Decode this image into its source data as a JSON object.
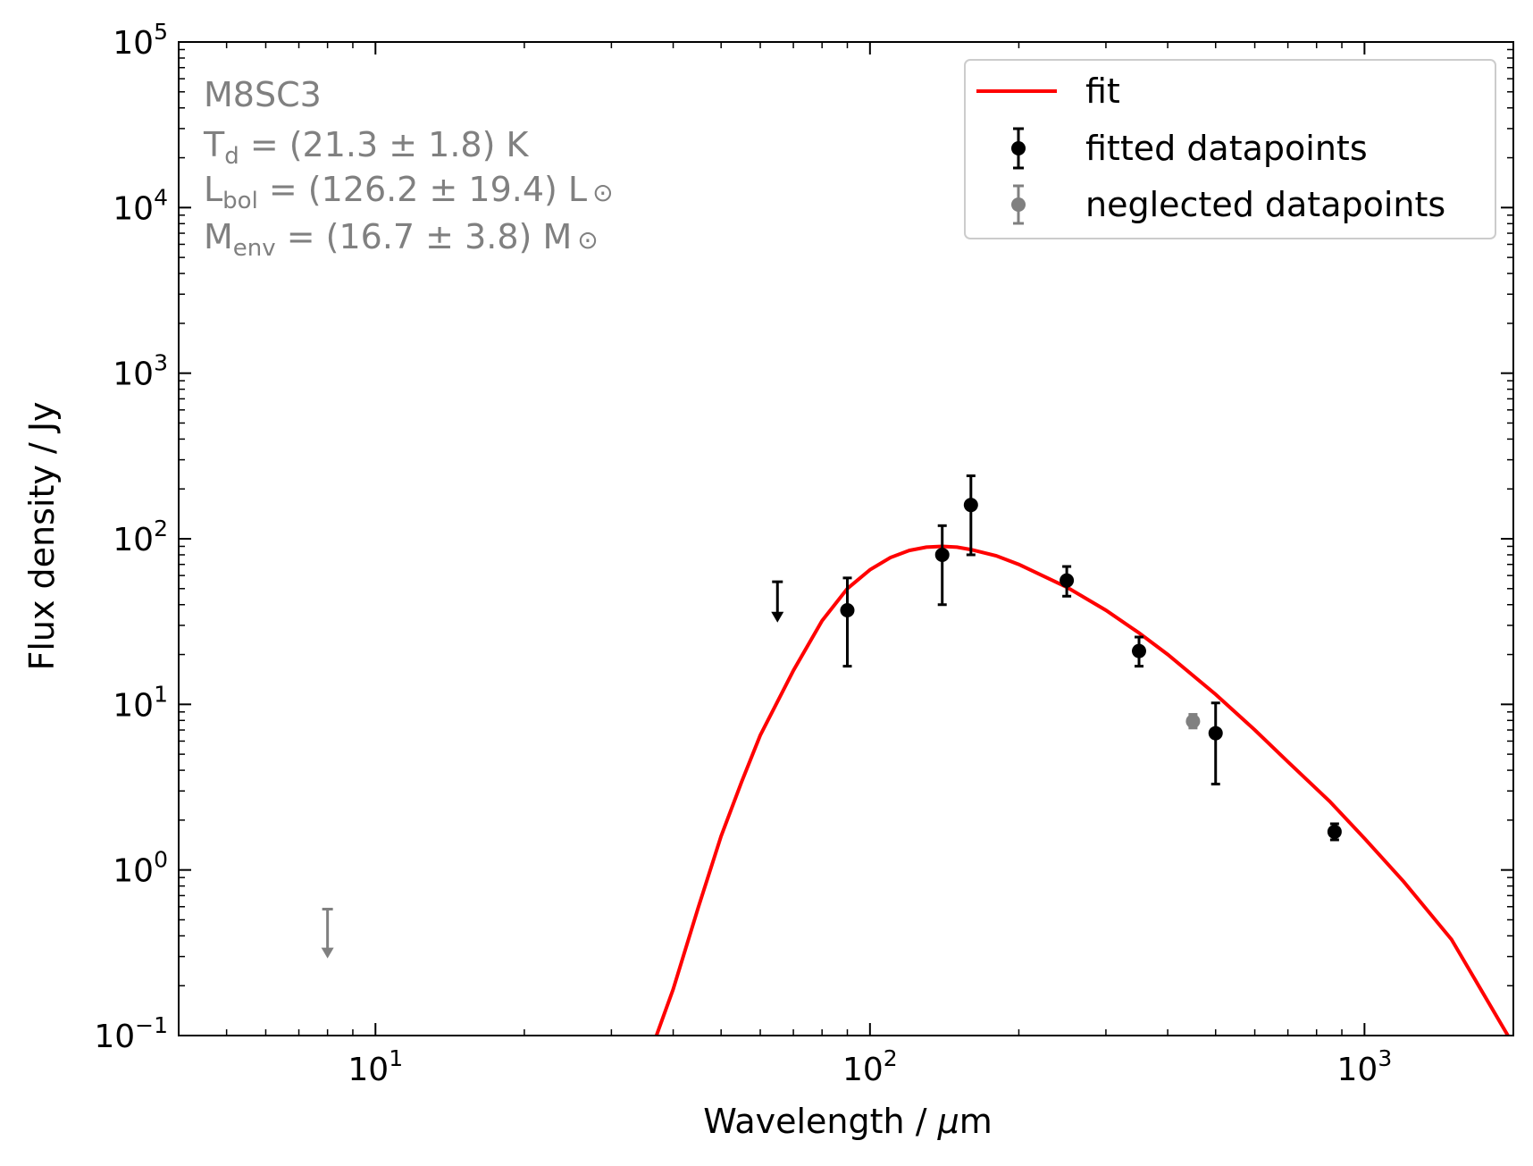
{
  "chart_data": {
    "type": "scatter",
    "object_name": "M8SC3",
    "annotations": {
      "name": "M8SC3",
      "td_main": "T",
      "td_sub": "d",
      "td_rest": " = (21.3 ± 1.8) K",
      "lbol_main": "L",
      "lbol_sub": "bol",
      "lbol_rest": " = (126.2 ± 19.4) L",
      "menv_main": "M",
      "menv_sub": "env",
      "menv_rest": " = (16.7 ± 3.8) M",
      "sun_symbol": "⊙"
    },
    "xlabel_prefix": "Wavelength / ",
    "xlabel_mu": "μ",
    "xlabel_suffix": "m",
    "ylabel": "Flux density / Jy",
    "x_scale": "log",
    "y_scale": "log",
    "xlim": [
      4,
      2000
    ],
    "ylim": [
      0.1,
      100000
    ],
    "x_ticks": [
      {
        "value": 10,
        "base": "10",
        "exp": "1"
      },
      {
        "value": 100,
        "base": "10",
        "exp": "2"
      },
      {
        "value": 1000,
        "base": "10",
        "exp": "3"
      }
    ],
    "y_ticks": [
      {
        "value": 0.1,
        "base": "10",
        "exp": "−1"
      },
      {
        "value": 1,
        "base": "10",
        "exp": "0"
      },
      {
        "value": 10,
        "base": "10",
        "exp": "1"
      },
      {
        "value": 100,
        "base": "10",
        "exp": "2"
      },
      {
        "value": 1000,
        "base": "10",
        "exp": "3"
      },
      {
        "value": 10000,
        "base": "10",
        "exp": "4"
      },
      {
        "value": 100000,
        "base": "10",
        "exp": "5"
      }
    ],
    "grid": false,
    "legend_position": "top-right",
    "legend": [
      {
        "label": "fit",
        "kind": "line",
        "color": "#ff0000"
      },
      {
        "label": "fitted datapoints",
        "kind": "errorbar",
        "color": "#000000"
      },
      {
        "label": "neglected datapoints",
        "kind": "errorbar",
        "color": "#808080"
      }
    ],
    "series": [
      {
        "name": "fit",
        "kind": "line",
        "color": "#ff0000",
        "x": [
          37,
          40,
          45,
          50,
          55,
          60,
          70,
          80,
          90,
          100,
          110,
          120,
          130,
          140,
          150,
          160,
          180,
          200,
          250,
          300,
          350,
          400,
          500,
          600,
          700,
          850,
          1000,
          1200,
          1500,
          1950
        ],
        "y": [
          0.1,
          0.19,
          0.6,
          1.6,
          3.4,
          6.5,
          16,
          32,
          50,
          65,
          77,
          85,
          89,
          90,
          89,
          86,
          79,
          70,
          51,
          37,
          27,
          20,
          11.5,
          7.0,
          4.5,
          2.6,
          1.55,
          0.85,
          0.38,
          0.1
        ]
      },
      {
        "name": "fitted datapoints",
        "kind": "errorbar",
        "color": "#000000",
        "points": [
          {
            "x": 90,
            "y": 37,
            "yerr_low": 17,
            "yerr_high": 58
          },
          {
            "x": 140,
            "y": 80,
            "yerr_low": 40,
            "yerr_high": 120
          },
          {
            "x": 160,
            "y": 160,
            "yerr_low": 80,
            "yerr_high": 240
          },
          {
            "x": 250,
            "y": 56,
            "yerr_low": 45,
            "yerr_high": 68
          },
          {
            "x": 350,
            "y": 21,
            "yerr_low": 17,
            "yerr_high": 25.5
          },
          {
            "x": 500,
            "y": 6.7,
            "yerr_low": 3.3,
            "yerr_high": 10.2
          },
          {
            "x": 870,
            "y": 1.7,
            "yerr_low": 1.52,
            "yerr_high": 1.9
          }
        ],
        "upper_limits": [
          {
            "x": 65,
            "y_top": 55,
            "y_arrow": 32
          }
        ]
      },
      {
        "name": "neglected datapoints",
        "kind": "errorbar",
        "color": "#808080",
        "points": [
          {
            "x": 450,
            "y": 7.9,
            "yerr_low": 7.2,
            "yerr_high": 8.7
          }
        ],
        "upper_limits": [
          {
            "x": 8,
            "y_top": 0.58,
            "y_arrow": 0.3
          }
        ]
      }
    ]
  }
}
